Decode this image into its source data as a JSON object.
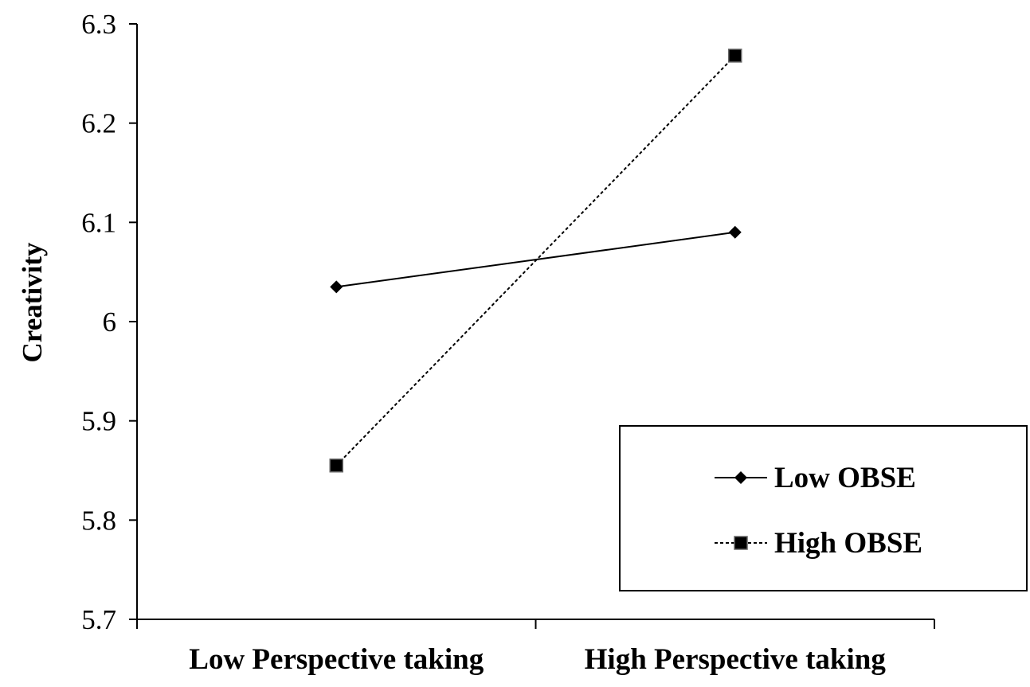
{
  "chart_data": {
    "type": "line",
    "title": "",
    "xlabel": "",
    "ylabel": "Creativity",
    "categories": [
      "Low Perspective taking",
      "High Perspective taking"
    ],
    "ylim": [
      5.7,
      6.3
    ],
    "yticks": [
      "5.7",
      "5.8",
      "5.9",
      "6",
      "6.1",
      "6.2",
      "6.3"
    ],
    "grid": false,
    "legend_position": "bottom-right",
    "series": [
      {
        "name": "Low OBSE",
        "values": [
          6.035,
          6.09
        ],
        "line": "solid",
        "marker": "diamond",
        "color": "#000000"
      },
      {
        "name": "High OBSE",
        "values": [
          5.855,
          6.268
        ],
        "line": "dashed",
        "marker": "square",
        "color": "#000000"
      }
    ]
  }
}
